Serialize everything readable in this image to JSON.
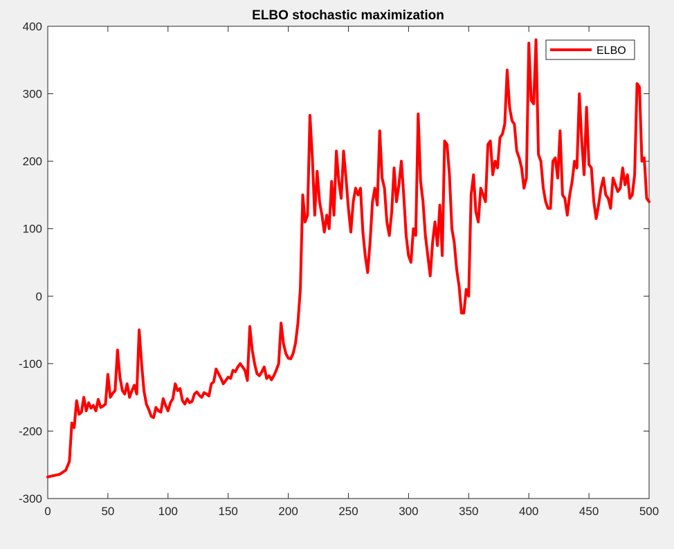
{
  "chart_data": {
    "type": "line",
    "title": "ELBO stochastic maximization",
    "xlabel": "",
    "ylabel": "",
    "xlim": [
      0,
      500
    ],
    "ylim": [
      -300,
      400
    ],
    "x_ticks": [
      0,
      50,
      100,
      150,
      200,
      250,
      300,
      350,
      400,
      450,
      500
    ],
    "y_ticks": [
      -300,
      -200,
      -100,
      0,
      100,
      200,
      300,
      400
    ],
    "grid": false,
    "legend_position": "top-right",
    "series": [
      {
        "name": "ELBO",
        "color": "#ff0000",
        "points": [
          [
            0,
            -268
          ],
          [
            5,
            -266
          ],
          [
            10,
            -264
          ],
          [
            15,
            -258
          ],
          [
            18,
            -245
          ],
          [
            20,
            -188
          ],
          [
            22,
            -195
          ],
          [
            24,
            -155
          ],
          [
            26,
            -175
          ],
          [
            28,
            -172
          ],
          [
            30,
            -150
          ],
          [
            32,
            -170
          ],
          [
            34,
            -158
          ],
          [
            36,
            -166
          ],
          [
            38,
            -162
          ],
          [
            40,
            -170
          ],
          [
            42,
            -153
          ],
          [
            44,
            -165
          ],
          [
            46,
            -163
          ],
          [
            48,
            -160
          ],
          [
            50,
            -116
          ],
          [
            52,
            -150
          ],
          [
            54,
            -144
          ],
          [
            56,
            -140
          ],
          [
            58,
            -80
          ],
          [
            60,
            -120
          ],
          [
            62,
            -140
          ],
          [
            64,
            -145
          ],
          [
            66,
            -130
          ],
          [
            68,
            -150
          ],
          [
            70,
            -140
          ],
          [
            72,
            -132
          ],
          [
            74,
            -145
          ],
          [
            76,
            -50
          ],
          [
            78,
            -100
          ],
          [
            80,
            -140
          ],
          [
            82,
            -160
          ],
          [
            84,
            -168
          ],
          [
            86,
            -178
          ],
          [
            88,
            -180
          ],
          [
            90,
            -165
          ],
          [
            92,
            -170
          ],
          [
            94,
            -172
          ],
          [
            96,
            -152
          ],
          [
            98,
            -162
          ],
          [
            100,
            -170
          ],
          [
            102,
            -158
          ],
          [
            104,
            -152
          ],
          [
            106,
            -130
          ],
          [
            108,
            -140
          ],
          [
            110,
            -137
          ],
          [
            112,
            -155
          ],
          [
            114,
            -160
          ],
          [
            116,
            -152
          ],
          [
            118,
            -158
          ],
          [
            120,
            -156
          ],
          [
            122,
            -145
          ],
          [
            124,
            -142
          ],
          [
            126,
            -147
          ],
          [
            128,
            -150
          ],
          [
            130,
            -143
          ],
          [
            132,
            -145
          ],
          [
            134,
            -148
          ],
          [
            136,
            -130
          ],
          [
            138,
            -127
          ],
          [
            140,
            -108
          ],
          [
            142,
            -115
          ],
          [
            144,
            -122
          ],
          [
            146,
            -130
          ],
          [
            148,
            -125
          ],
          [
            150,
            -120
          ],
          [
            152,
            -122
          ],
          [
            154,
            -110
          ],
          [
            156,
            -112
          ],
          [
            158,
            -105
          ],
          [
            160,
            -100
          ],
          [
            162,
            -105
          ],
          [
            164,
            -110
          ],
          [
            166,
            -125
          ],
          [
            168,
            -45
          ],
          [
            170,
            -80
          ],
          [
            172,
            -100
          ],
          [
            174,
            -115
          ],
          [
            176,
            -118
          ],
          [
            178,
            -112
          ],
          [
            180,
            -105
          ],
          [
            182,
            -122
          ],
          [
            184,
            -118
          ],
          [
            186,
            -124
          ],
          [
            188,
            -118
          ],
          [
            190,
            -110
          ],
          [
            192,
            -100
          ],
          [
            194,
            -40
          ],
          [
            196,
            -70
          ],
          [
            198,
            -85
          ],
          [
            200,
            -92
          ],
          [
            202,
            -93
          ],
          [
            204,
            -85
          ],
          [
            206,
            -70
          ],
          [
            208,
            -40
          ],
          [
            210,
            10
          ],
          [
            212,
            150
          ],
          [
            214,
            110
          ],
          [
            216,
            120
          ],
          [
            218,
            268
          ],
          [
            220,
            205
          ],
          [
            222,
            120
          ],
          [
            224,
            185
          ],
          [
            226,
            140
          ],
          [
            228,
            120
          ],
          [
            230,
            95
          ],
          [
            232,
            120
          ],
          [
            234,
            100
          ],
          [
            236,
            170
          ],
          [
            238,
            120
          ],
          [
            240,
            215
          ],
          [
            242,
            170
          ],
          [
            244,
            145
          ],
          [
            246,
            215
          ],
          [
            248,
            175
          ],
          [
            250,
            130
          ],
          [
            252,
            95
          ],
          [
            254,
            140
          ],
          [
            256,
            160
          ],
          [
            258,
            150
          ],
          [
            260,
            160
          ],
          [
            262,
            95
          ],
          [
            264,
            60
          ],
          [
            266,
            35
          ],
          [
            268,
            80
          ],
          [
            270,
            140
          ],
          [
            272,
            160
          ],
          [
            274,
            135
          ],
          [
            276,
            245
          ],
          [
            278,
            175
          ],
          [
            280,
            160
          ],
          [
            282,
            110
          ],
          [
            284,
            90
          ],
          [
            286,
            125
          ],
          [
            288,
            190
          ],
          [
            290,
            140
          ],
          [
            292,
            165
          ],
          [
            294,
            200
          ],
          [
            296,
            150
          ],
          [
            298,
            90
          ],
          [
            300,
            60
          ],
          [
            302,
            50
          ],
          [
            304,
            100
          ],
          [
            306,
            90
          ],
          [
            308,
            270
          ],
          [
            310,
            170
          ],
          [
            312,
            140
          ],
          [
            314,
            90
          ],
          [
            316,
            60
          ],
          [
            318,
            30
          ],
          [
            320,
            80
          ],
          [
            322,
            110
          ],
          [
            324,
            75
          ],
          [
            326,
            135
          ],
          [
            328,
            60
          ],
          [
            330,
            230
          ],
          [
            332,
            225
          ],
          [
            334,
            180
          ],
          [
            336,
            100
          ],
          [
            338,
            80
          ],
          [
            340,
            40
          ],
          [
            342,
            15
          ],
          [
            344,
            -25
          ],
          [
            346,
            -25
          ],
          [
            348,
            10
          ],
          [
            350,
            0
          ],
          [
            352,
            150
          ],
          [
            354,
            180
          ],
          [
            356,
            125
          ],
          [
            358,
            110
          ],
          [
            360,
            160
          ],
          [
            362,
            150
          ],
          [
            364,
            140
          ],
          [
            366,
            225
          ],
          [
            368,
            230
          ],
          [
            370,
            180
          ],
          [
            372,
            200
          ],
          [
            374,
            190
          ],
          [
            376,
            235
          ],
          [
            378,
            240
          ],
          [
            380,
            255
          ],
          [
            382,
            335
          ],
          [
            384,
            280
          ],
          [
            386,
            260
          ],
          [
            388,
            255
          ],
          [
            390,
            215
          ],
          [
            392,
            205
          ],
          [
            394,
            190
          ],
          [
            396,
            160
          ],
          [
            398,
            175
          ],
          [
            400,
            375
          ],
          [
            402,
            290
          ],
          [
            404,
            285
          ],
          [
            406,
            380
          ],
          [
            408,
            210
          ],
          [
            410,
            200
          ],
          [
            412,
            160
          ],
          [
            414,
            140
          ],
          [
            416,
            130
          ],
          [
            418,
            130
          ],
          [
            420,
            200
          ],
          [
            422,
            205
          ],
          [
            424,
            175
          ],
          [
            426,
            245
          ],
          [
            428,
            150
          ],
          [
            430,
            145
          ],
          [
            432,
            120
          ],
          [
            434,
            150
          ],
          [
            436,
            170
          ],
          [
            438,
            200
          ],
          [
            440,
            190
          ],
          [
            442,
            300
          ],
          [
            444,
            230
          ],
          [
            446,
            180
          ],
          [
            448,
            280
          ],
          [
            450,
            195
          ],
          [
            452,
            190
          ],
          [
            454,
            140
          ],
          [
            456,
            115
          ],
          [
            458,
            135
          ],
          [
            460,
            160
          ],
          [
            462,
            175
          ],
          [
            464,
            150
          ],
          [
            466,
            145
          ],
          [
            468,
            130
          ],
          [
            470,
            175
          ],
          [
            472,
            165
          ],
          [
            474,
            155
          ],
          [
            476,
            160
          ],
          [
            478,
            190
          ],
          [
            480,
            165
          ],
          [
            482,
            180
          ],
          [
            484,
            145
          ],
          [
            486,
            150
          ],
          [
            488,
            180
          ],
          [
            490,
            315
          ],
          [
            492,
            310
          ],
          [
            494,
            200
          ],
          [
            496,
            205
          ],
          [
            498,
            145
          ],
          [
            500,
            140
          ]
        ]
      }
    ]
  }
}
